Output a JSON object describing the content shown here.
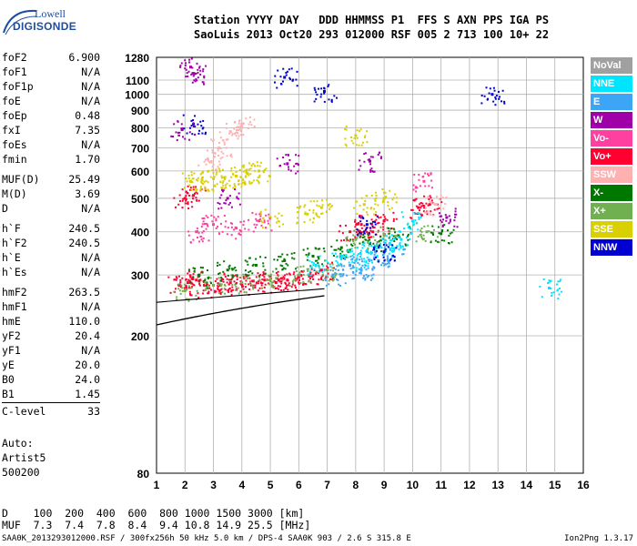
{
  "logo": {
    "line1": "Lowell",
    "line2": "DIGISONDE"
  },
  "header": {
    "line1": "Station YYYY DAY   DDD HHMMSS P1  FFS S AXN PPS IGA PS",
    "line2": "SaoLuis 2013 Oct20 293 012000 RSF 005 2 713 100 10+ 22"
  },
  "params": [
    {
      "label": "foF2",
      "value": "6.900"
    },
    {
      "label": "foF1",
      "value": "N/A"
    },
    {
      "label": "foF1p",
      "value": "N/A"
    },
    {
      "label": "foE",
      "value": "N/A"
    },
    {
      "label": "foEp",
      "value": "0.48"
    },
    {
      "label": "fxI",
      "value": "7.35"
    },
    {
      "label": "foEs",
      "value": "N/A"
    },
    {
      "label": "fmin",
      "value": "1.70"
    },
    {
      "label": "MUF(D)",
      "value": "25.49"
    },
    {
      "label": "M(D)",
      "value": "3.69"
    },
    {
      "label": "D",
      "value": "N/A"
    },
    {
      "label": "h`F",
      "value": "240.5"
    },
    {
      "label": "h`F2",
      "value": "240.5"
    },
    {
      "label": "h`E",
      "value": "N/A"
    },
    {
      "label": "h`Es",
      "value": "N/A"
    },
    {
      "label": "hmF2",
      "value": "263.5"
    },
    {
      "label": "hmF1",
      "value": "N/A"
    },
    {
      "label": "hmE",
      "value": "110.0"
    },
    {
      "label": "yF2",
      "value": "20.4"
    },
    {
      "label": "yF1",
      "value": "N/A"
    },
    {
      "label": "yE",
      "value": "20.0"
    },
    {
      "label": "B0",
      "value": "24.0"
    },
    {
      "label": "B1",
      "value": "1.45"
    },
    {
      "label": "C-level",
      "value": "33"
    }
  ],
  "auto": {
    "line1": "Auto:",
    "line2": "Artist5",
    "line3": "500200"
  },
  "legend": [
    {
      "name": "NoVal",
      "color": "#a0a0a0"
    },
    {
      "name": "NNE",
      "color": "#00e5ff"
    },
    {
      "name": "E",
      "color": "#3da5f5"
    },
    {
      "name": "W",
      "color": "#a000a8"
    },
    {
      "name": "Vo-",
      "color": "#ff40a0"
    },
    {
      "name": "Vo+",
      "color": "#ff0030"
    },
    {
      "name": "SSW",
      "color": "#ffb0b0"
    },
    {
      "name": "X-",
      "color": "#007800"
    },
    {
      "name": "X+",
      "color": "#70b050"
    },
    {
      "name": "SSE",
      "color": "#d8d000"
    },
    {
      "name": "NNW",
      "color": "#0000d0"
    }
  ],
  "scale": {
    "line1": "D    100  200  400  600  800 1000 1500 3000 [km]",
    "line2": "MUF  7.3  7.4  7.8  8.4  9.4 10.8 14.9 25.5 [MHz]"
  },
  "footer": {
    "left": "SAA0K_2013293012000.RSF / 300fx256h 50 kHz 5.0 km / DPS-4 SAA0K 903 / 2.6 S 315.8 E",
    "right": "Ion2Png 1.3.17"
  },
  "chart_data": {
    "type": "scatter",
    "title": "",
    "xlabel": "",
    "ylabel": "",
    "x_ticks": [
      1,
      2,
      3,
      4,
      5,
      6,
      7,
      8,
      9,
      10,
      11,
      12,
      13,
      14,
      15,
      16
    ],
    "y_ticks": [
      80,
      200,
      300,
      400,
      500,
      600,
      700,
      800,
      900,
      1000,
      1100,
      1280
    ],
    "xlim": [
      1,
      16
    ],
    "ylim": [
      80,
      1280
    ],
    "y_scale": "log",
    "grid": true,
    "legend_position": "right",
    "series": [
      {
        "name": "Vo+",
        "color": "#ff0030",
        "points": [
          [
            1.8,
            280
          ],
          [
            2.1,
            285
          ],
          [
            2.4,
            290
          ],
          [
            2.8,
            275
          ],
          [
            3.2,
            280
          ],
          [
            3.6,
            285
          ],
          [
            4.0,
            282
          ],
          [
            4.4,
            288
          ],
          [
            4.8,
            290
          ],
          [
            5.2,
            285
          ],
          [
            5.6,
            290
          ],
          [
            6.0,
            295
          ],
          [
            6.4,
            300
          ],
          [
            6.8,
            310
          ],
          [
            2.0,
            500
          ],
          [
            2.3,
            510
          ],
          [
            7.8,
            400
          ],
          [
            8.2,
            420
          ],
          [
            8.6,
            400
          ],
          [
            9.0,
            430
          ],
          [
            10.2,
            470
          ],
          [
            10.6,
            480
          ]
        ]
      },
      {
        "name": "SSE",
        "color": "#d8d000",
        "points": [
          [
            2.2,
            560
          ],
          [
            2.6,
            565
          ],
          [
            3.0,
            570
          ],
          [
            3.4,
            575
          ],
          [
            3.8,
            580
          ],
          [
            4.2,
            590
          ],
          [
            4.6,
            600
          ],
          [
            5.0,
            440
          ],
          [
            6.3,
            450
          ],
          [
            6.8,
            470
          ],
          [
            8.3,
            480
          ],
          [
            9.0,
            500
          ],
          [
            8.0,
            760
          ]
        ]
      },
      {
        "name": "X+",
        "color": "#70b050",
        "points": [
          [
            2.0,
            270
          ],
          [
            3.0,
            280
          ],
          [
            4.0,
            285
          ],
          [
            5.0,
            290
          ],
          [
            6.0,
            300
          ],
          [
            7.0,
            310
          ],
          [
            8.0,
            380
          ],
          [
            9.0,
            390
          ],
          [
            10.5,
            400
          ]
        ]
      },
      {
        "name": "X-",
        "color": "#007800",
        "points": [
          [
            2.5,
            300
          ],
          [
            3.5,
            310
          ],
          [
            4.5,
            320
          ],
          [
            5.5,
            330
          ],
          [
            6.5,
            340
          ],
          [
            7.5,
            360
          ],
          [
            8.5,
            370
          ],
          [
            9.5,
            390
          ],
          [
            11.0,
            395
          ]
        ]
      },
      {
        "name": "NNE",
        "color": "#00e5ff",
        "points": [
          [
            6.6,
            320
          ],
          [
            7.5,
            340
          ],
          [
            8.0,
            330
          ],
          [
            8.4,
            350
          ],
          [
            8.8,
            360
          ],
          [
            9.2,
            370
          ],
          [
            9.6,
            380
          ],
          [
            10.0,
            430
          ],
          [
            14.8,
            275
          ]
        ]
      },
      {
        "name": "E",
        "color": "#3da5f5",
        "points": [
          [
            7.2,
            300
          ],
          [
            7.8,
            320
          ],
          [
            8.2,
            310
          ],
          [
            8.8,
            330
          ],
          [
            9.3,
            340
          ]
        ]
      },
      {
        "name": "NNW",
        "color": "#0000d0",
        "points": [
          [
            5.5,
            1120
          ],
          [
            6.9,
            1020
          ],
          [
            12.8,
            1000
          ],
          [
            2.3,
            820
          ],
          [
            8.4,
            420
          ],
          [
            9.0,
            350
          ]
        ]
      },
      {
        "name": "W",
        "color": "#a000a8",
        "points": [
          [
            1.9,
            790
          ],
          [
            2.2,
            1200
          ],
          [
            2.3,
            1150
          ],
          [
            3.5,
            500
          ],
          [
            5.6,
            630
          ],
          [
            8.5,
            640
          ],
          [
            11.2,
            440
          ]
        ]
      },
      {
        "name": "SSW",
        "color": "#ffb0b0",
        "points": [
          [
            3.2,
            700
          ],
          [
            3.6,
            780
          ],
          [
            4.0,
            820
          ],
          [
            2.8,
            650
          ],
          [
            10.8,
            480
          ]
        ]
      },
      {
        "name": "Vo-",
        "color": "#ff40a0",
        "points": [
          [
            2.4,
            400
          ],
          [
            3.0,
            420
          ],
          [
            3.8,
            410
          ],
          [
            4.6,
            430
          ],
          [
            10.4,
            560
          ]
        ]
      }
    ]
  }
}
